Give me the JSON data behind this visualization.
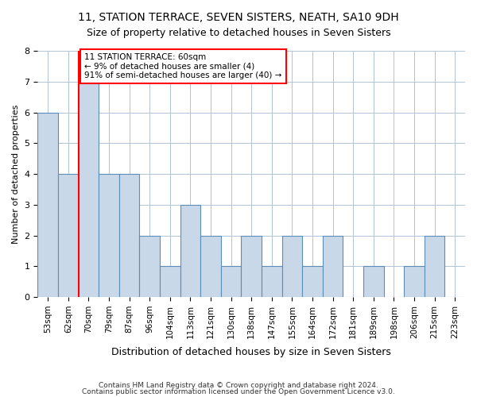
{
  "title1": "11, STATION TERRACE, SEVEN SISTERS, NEATH, SA10 9DH",
  "title2": "Size of property relative to detached houses in Seven Sisters",
  "xlabel": "Distribution of detached houses by size in Seven Sisters",
  "ylabel": "Number of detached properties",
  "categories": [
    "53sqm",
    "62sqm",
    "70sqm",
    "79sqm",
    "87sqm",
    "96sqm",
    "104sqm",
    "113sqm",
    "121sqm",
    "130sqm",
    "138sqm",
    "147sqm",
    "155sqm",
    "164sqm",
    "172sqm",
    "181sqm",
    "189sqm",
    "198sqm",
    "206sqm",
    "215sqm",
    "223sqm"
  ],
  "values": [
    6,
    4,
    7,
    4,
    4,
    2,
    1,
    3,
    2,
    1,
    2,
    1,
    2,
    1,
    2,
    0,
    1,
    0,
    1,
    2,
    0
  ],
  "bar_color": "#c8d8e8",
  "bar_edge_color": "#5b8db8",
  "property_line_index": 1.5,
  "property_sqm": "60sqm",
  "annotation_title": "11 STATION TERRACE: 60sqm",
  "annotation_line1": "← 9% of detached houses are smaller (4)",
  "annotation_line2": "91% of semi-detached houses are larger (40) →",
  "footer1": "Contains HM Land Registry data © Crown copyright and database right 2024.",
  "footer2": "Contains public sector information licensed under the Open Government Licence v3.0.",
  "ylim": [
    0,
    8
  ],
  "yticks": [
    0,
    1,
    2,
    3,
    4,
    5,
    6,
    7,
    8
  ]
}
